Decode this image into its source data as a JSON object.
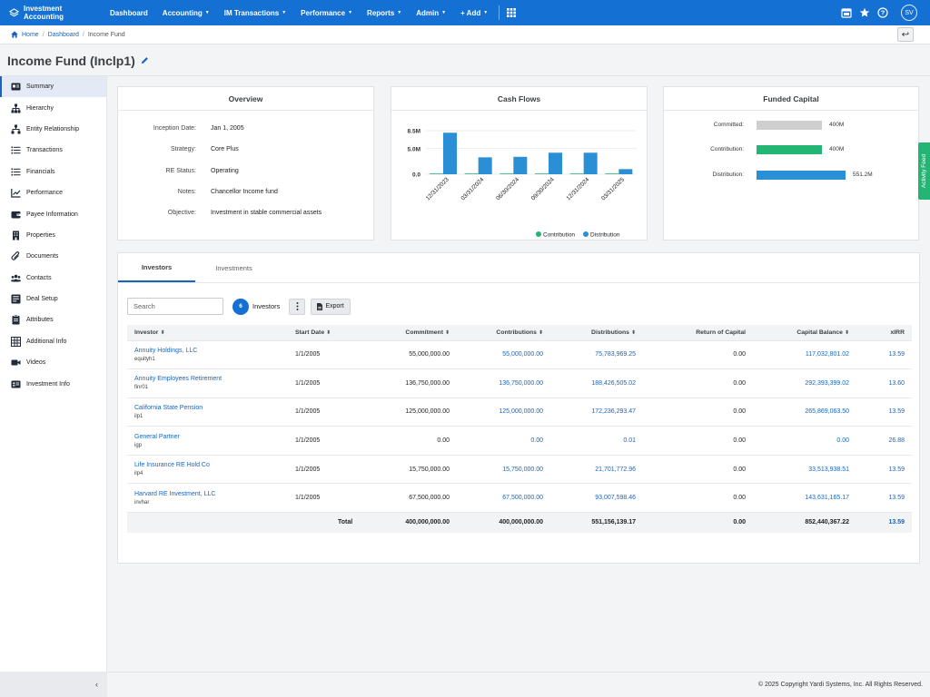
{
  "app": {
    "title": "Investment Accounting"
  },
  "nav": {
    "items": [
      {
        "label": "Dashboard",
        "caret": false
      },
      {
        "label": "Accounting",
        "caret": true
      },
      {
        "label": "IM Transactions",
        "caret": true
      },
      {
        "label": "Performance",
        "caret": true
      },
      {
        "label": "Reports",
        "caret": true
      },
      {
        "label": "Admin",
        "caret": true
      },
      {
        "label": "+ Add",
        "caret": true
      }
    ],
    "user_initials": "SV"
  },
  "breadcrumb": {
    "home": "Home",
    "dashboard": "Dashboard",
    "current": "Income Fund"
  },
  "page": {
    "title": "Income Fund (Inclp1)"
  },
  "sidebar": {
    "items": [
      {
        "label": "Summary",
        "icon": "summary-icon"
      },
      {
        "label": "Hierarchy",
        "icon": "hierarchy-icon"
      },
      {
        "label": "Entity Relationship",
        "icon": "entity-relationship-icon"
      },
      {
        "label": "Transactions",
        "icon": "transactions-icon"
      },
      {
        "label": "Financials",
        "icon": "financials-icon"
      },
      {
        "label": "Performance",
        "icon": "performance-icon"
      },
      {
        "label": "Payee Information",
        "icon": "payee-icon"
      },
      {
        "label": "Properties",
        "icon": "properties-icon"
      },
      {
        "label": "Documents",
        "icon": "documents-icon"
      },
      {
        "label": "Contacts",
        "icon": "contacts-icon"
      },
      {
        "label": "Deal Setup",
        "icon": "deal-setup-icon"
      },
      {
        "label": "Attributes",
        "icon": "attributes-icon"
      },
      {
        "label": "Additional Info",
        "icon": "additional-info-icon"
      },
      {
        "label": "Videos",
        "icon": "videos-icon"
      },
      {
        "label": "Investment Info",
        "icon": "investment-info-icon"
      }
    ],
    "collapse_glyph": "‹"
  },
  "overview": {
    "title": "Overview",
    "fields": [
      {
        "label": "Inception Date:",
        "value": "Jan 1, 2005"
      },
      {
        "label": "Strategy:",
        "value": "Core Plus"
      },
      {
        "label": "RE Status:",
        "value": "Operating"
      },
      {
        "label": "Notes:",
        "value": "Chancellor Income fund"
      },
      {
        "label": "Objective:",
        "value": "Investment in stable commercial assets"
      }
    ]
  },
  "cashflows": {
    "title": "Cash Flows"
  },
  "chart_data": {
    "type": "bar",
    "title": "Cash Flows",
    "categories": [
      "12/31/2023",
      "03/31/2024",
      "06/30/2024",
      "09/30/2024",
      "12/31/2024",
      "03/31/2025"
    ],
    "series": [
      {
        "name": "Contribution",
        "color": "#22b573",
        "values": [
          0.05,
          0.05,
          0.05,
          0.05,
          0.05,
          0.05
        ]
      },
      {
        "name": "Distribution",
        "color": "#2b8fd6",
        "values": [
          8.1,
          3.3,
          3.4,
          4.2,
          4.2,
          1.0
        ]
      }
    ],
    "yticks": [
      "8.5M",
      "5.0M",
      "0.0"
    ],
    "ylim": [
      0,
      8.5
    ],
    "unit": "M",
    "legend": "bottom",
    "grid": true
  },
  "funded": {
    "title": "Funded Capital",
    "rows": [
      {
        "label": "Committed:",
        "value": "400M",
        "amount": 400,
        "color": "#cfcfcf"
      },
      {
        "label": "Contribution:",
        "value": "400M",
        "amount": 400,
        "color": "#22b573"
      },
      {
        "label": "Distribution:",
        "value": "551.2M",
        "amount": 551.2,
        "color": "#2b8fd6"
      }
    ]
  },
  "activity_feed": "Activity Feed",
  "tabs": [
    {
      "label": "Investors"
    },
    {
      "label": "Investments"
    }
  ],
  "toolbar": {
    "search_placeholder": "Search",
    "count": "6",
    "count_label": "Investors",
    "export_label": "Export"
  },
  "table": {
    "columns": [
      "Investor",
      "Start Date",
      "Commitment",
      "Contributions",
      "Distributions",
      "Return of Capital",
      "Capital Balance",
      "xIRR"
    ],
    "rows": [
      {
        "name": "Annuity Holdings, LLC",
        "code": "equityh1",
        "start": "1/1/2005",
        "commitment": "55,000,000.00",
        "contributions": "55,000,000.00",
        "distributions": "75,783,969.25",
        "roc": "0.00",
        "balance": "117,032,801.02",
        "xirr": "13.59"
      },
      {
        "name": "Annuity Employees Retirement",
        "code": "finr01",
        "start": "1/1/2005",
        "commitment": "136,750,000.00",
        "contributions": "136,750,000.00",
        "distributions": "188,426,505.02",
        "roc": "0.00",
        "balance": "292,393,399.02",
        "xirr": "13.60"
      },
      {
        "name": "California State Pension",
        "code": "ilp1",
        "start": "1/1/2005",
        "commitment": "125,000,000.00",
        "contributions": "125,000,000.00",
        "distributions": "172,236,293.47",
        "roc": "0.00",
        "balance": "265,869,063.50",
        "xirr": "13.59"
      },
      {
        "name": "General Partner",
        "code": "igp",
        "start": "1/1/2005",
        "commitment": "0.00",
        "contributions": "0.00",
        "distributions": "0.01",
        "roc": "0.00",
        "balance": "0.00",
        "xirr": "26.88"
      },
      {
        "name": "Life Insurance RE Hold Co",
        "code": "ilp4",
        "start": "1/1/2005",
        "commitment": "15,750,000.00",
        "contributions": "15,750,000.00",
        "distributions": "21,701,772.96",
        "roc": "0.00",
        "balance": "33,513,938.51",
        "xirr": "13.59"
      },
      {
        "name": "Harvard RE Investment, LLC",
        "code": "invhar",
        "start": "1/1/2005",
        "commitment": "67,500,000.00",
        "contributions": "67,500,000.00",
        "distributions": "93,007,598.46",
        "roc": "0.00",
        "balance": "143,631,165.17",
        "xirr": "13.59"
      }
    ],
    "total": {
      "label": "Total",
      "commitment": "400,000,000.00",
      "contributions": "400,000,000.00",
      "distributions": "551,156,139.17",
      "roc": "0.00",
      "balance": "852,440,367.22",
      "xirr": "13.59"
    }
  },
  "footer": "© 2025 Copyright Yardi Systems, Inc. All Rights Reserved."
}
